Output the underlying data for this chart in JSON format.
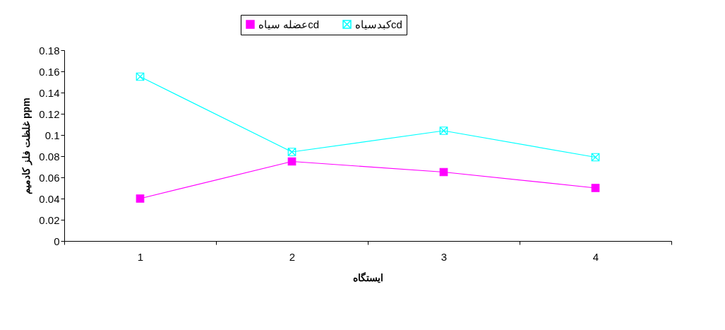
{
  "chart_data": {
    "type": "line",
    "xlabel": "ایستگاه",
    "ylabel": "غلظت فلز کادمیم ppm",
    "categories": [
      "1",
      "2",
      "3",
      "4"
    ],
    "series": [
      {
        "name": "عضله سیاهcd",
        "color": "#ff00ff",
        "marker": "square",
        "values": [
          0.04,
          0.075,
          0.065,
          0.05
        ]
      },
      {
        "name": "کبدسیاهcd",
        "color": "#00ffff",
        "marker": "cross",
        "values": [
          0.155,
          0.084,
          0.104,
          0.079
        ]
      }
    ],
    "ylim": [
      0,
      0.18
    ],
    "yticks": [
      0,
      0.02,
      0.04,
      0.06,
      0.08,
      0.1,
      0.12,
      0.14,
      0.16,
      0.18
    ],
    "grid": false,
    "legend": "top",
    "line_style": "solid"
  }
}
